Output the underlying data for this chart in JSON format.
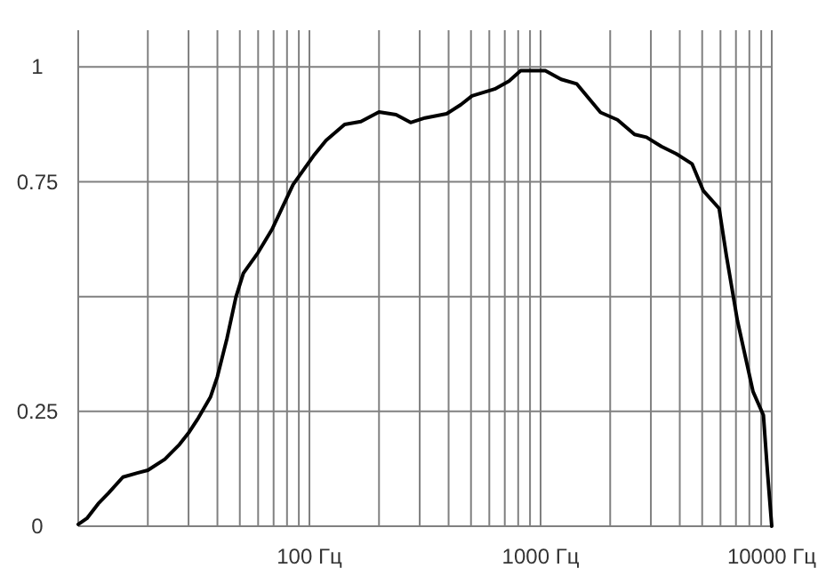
{
  "chart_data": {
    "type": "line",
    "log": "x",
    "grid": true,
    "xlim": [
      10,
      10000
    ],
    "ylim": [
      0,
      1.08
    ],
    "xticks": [
      {
        "value": 10,
        "label": null
      },
      {
        "value": 20,
        "label": null
      },
      {
        "value": 30,
        "label": null
      },
      {
        "value": 40,
        "label": null
      },
      {
        "value": 50,
        "label": null
      },
      {
        "value": 60,
        "label": null
      },
      {
        "value": 70,
        "label": null
      },
      {
        "value": 80,
        "label": null
      },
      {
        "value": 90,
        "label": null
      },
      {
        "value": 100,
        "label": "100 Гц"
      },
      {
        "value": 200,
        "label": null
      },
      {
        "value": 300,
        "label": null
      },
      {
        "value": 400,
        "label": null
      },
      {
        "value": 500,
        "label": null
      },
      {
        "value": 600,
        "label": null
      },
      {
        "value": 700,
        "label": null
      },
      {
        "value": 800,
        "label": null
      },
      {
        "value": 900,
        "label": null
      },
      {
        "value": 1000,
        "label": "1000 Гц"
      },
      {
        "value": 2000,
        "label": null
      },
      {
        "value": 3000,
        "label": null
      },
      {
        "value": 4000,
        "label": null
      },
      {
        "value": 5000,
        "label": null
      },
      {
        "value": 6000,
        "label": null
      },
      {
        "value": 7000,
        "label": null
      },
      {
        "value": 8000,
        "label": null
      },
      {
        "value": 9000,
        "label": null
      },
      {
        "value": 10000,
        "label": "10000 Гц"
      }
    ],
    "yticks": [
      0,
      0.25,
      {
        "value": 0.5,
        "label": null
      },
      0.75,
      1
    ],
    "series": [
      {
        "color": "#000000",
        "x": [
          10,
          10.9,
          12.2,
          13.5,
          15.6,
          18,
          20,
          23.7,
          27.4,
          30,
          33.1,
          37.3,
          40,
          44,
          48.1,
          51.8,
          60,
          69,
          85,
          104,
          118,
          142,
          167,
          200,
          237,
          274,
          316,
          392,
          452,
          505,
          633,
          730,
          820,
          1048,
          1227,
          1435,
          1817,
          2150,
          2550,
          2870,
          3330,
          3860,
          4520,
          5050,
          5920,
          6360,
          7100,
          8300,
          9200,
          9600,
          10000
        ],
        "values": [
          0.004,
          0.017,
          0.049,
          0.072,
          0.107,
          0.116,
          0.122,
          0.146,
          0.178,
          0.203,
          0.236,
          0.281,
          0.326,
          0.409,
          0.499,
          0.551,
          0.596,
          0.647,
          0.744,
          0.806,
          0.84,
          0.875,
          0.881,
          0.902,
          0.896,
          0.879,
          0.889,
          0.898,
          0.918,
          0.937,
          0.952,
          0.969,
          0.992,
          0.992,
          0.973,
          0.963,
          0.901,
          0.885,
          0.853,
          0.847,
          0.827,
          0.811,
          0.789,
          0.731,
          0.692,
          0.59,
          0.448,
          0.293,
          0.242,
          0.113,
          0
        ]
      }
    ]
  }
}
